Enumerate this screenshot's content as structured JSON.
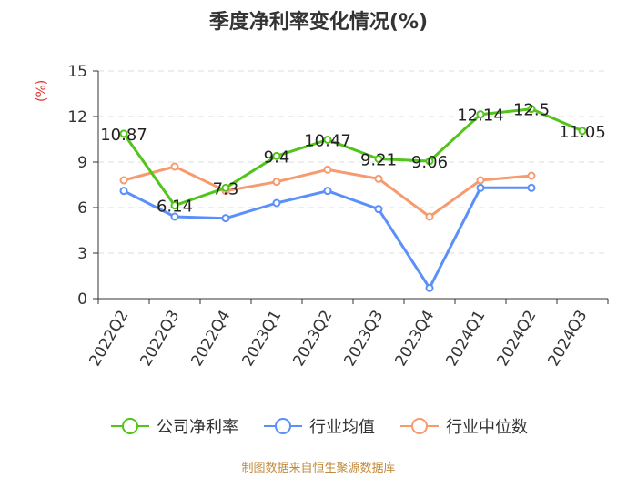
{
  "chart_data": {
    "type": "line",
    "title": "季度净利率变化情况(%)",
    "y_unit": "(%)",
    "categories": [
      "2022Q2",
      "2022Q3",
      "2022Q4",
      "2023Q1",
      "2023Q2",
      "2023Q3",
      "2023Q4",
      "2024Q1",
      "2024Q2",
      "2024Q3"
    ],
    "ylim": [
      0,
      15
    ],
    "yticks": [
      0,
      3,
      6,
      9,
      12,
      15
    ],
    "grid": true,
    "legend_position": "bottom",
    "series": [
      {
        "name": "公司净利率",
        "color": "#52c41a",
        "values": [
          10.87,
          6.14,
          7.3,
          9.4,
          10.47,
          9.21,
          9.06,
          12.14,
          12.5,
          11.05
        ],
        "show_labels": true
      },
      {
        "name": "行业均值",
        "color": "#5b8ff9",
        "values": [
          7.1,
          5.4,
          5.3,
          6.3,
          7.1,
          5.9,
          0.7,
          7.3,
          7.3,
          null
        ],
        "show_labels": false
      },
      {
        "name": "行业中位数",
        "color": "#f79a6e",
        "values": [
          7.8,
          8.7,
          7.1,
          7.7,
          8.5,
          7.9,
          5.4,
          7.8,
          8.1,
          null
        ],
        "show_labels": false
      }
    ]
  },
  "footer": {
    "source": "制图数据来自恒生聚源数据库"
  }
}
